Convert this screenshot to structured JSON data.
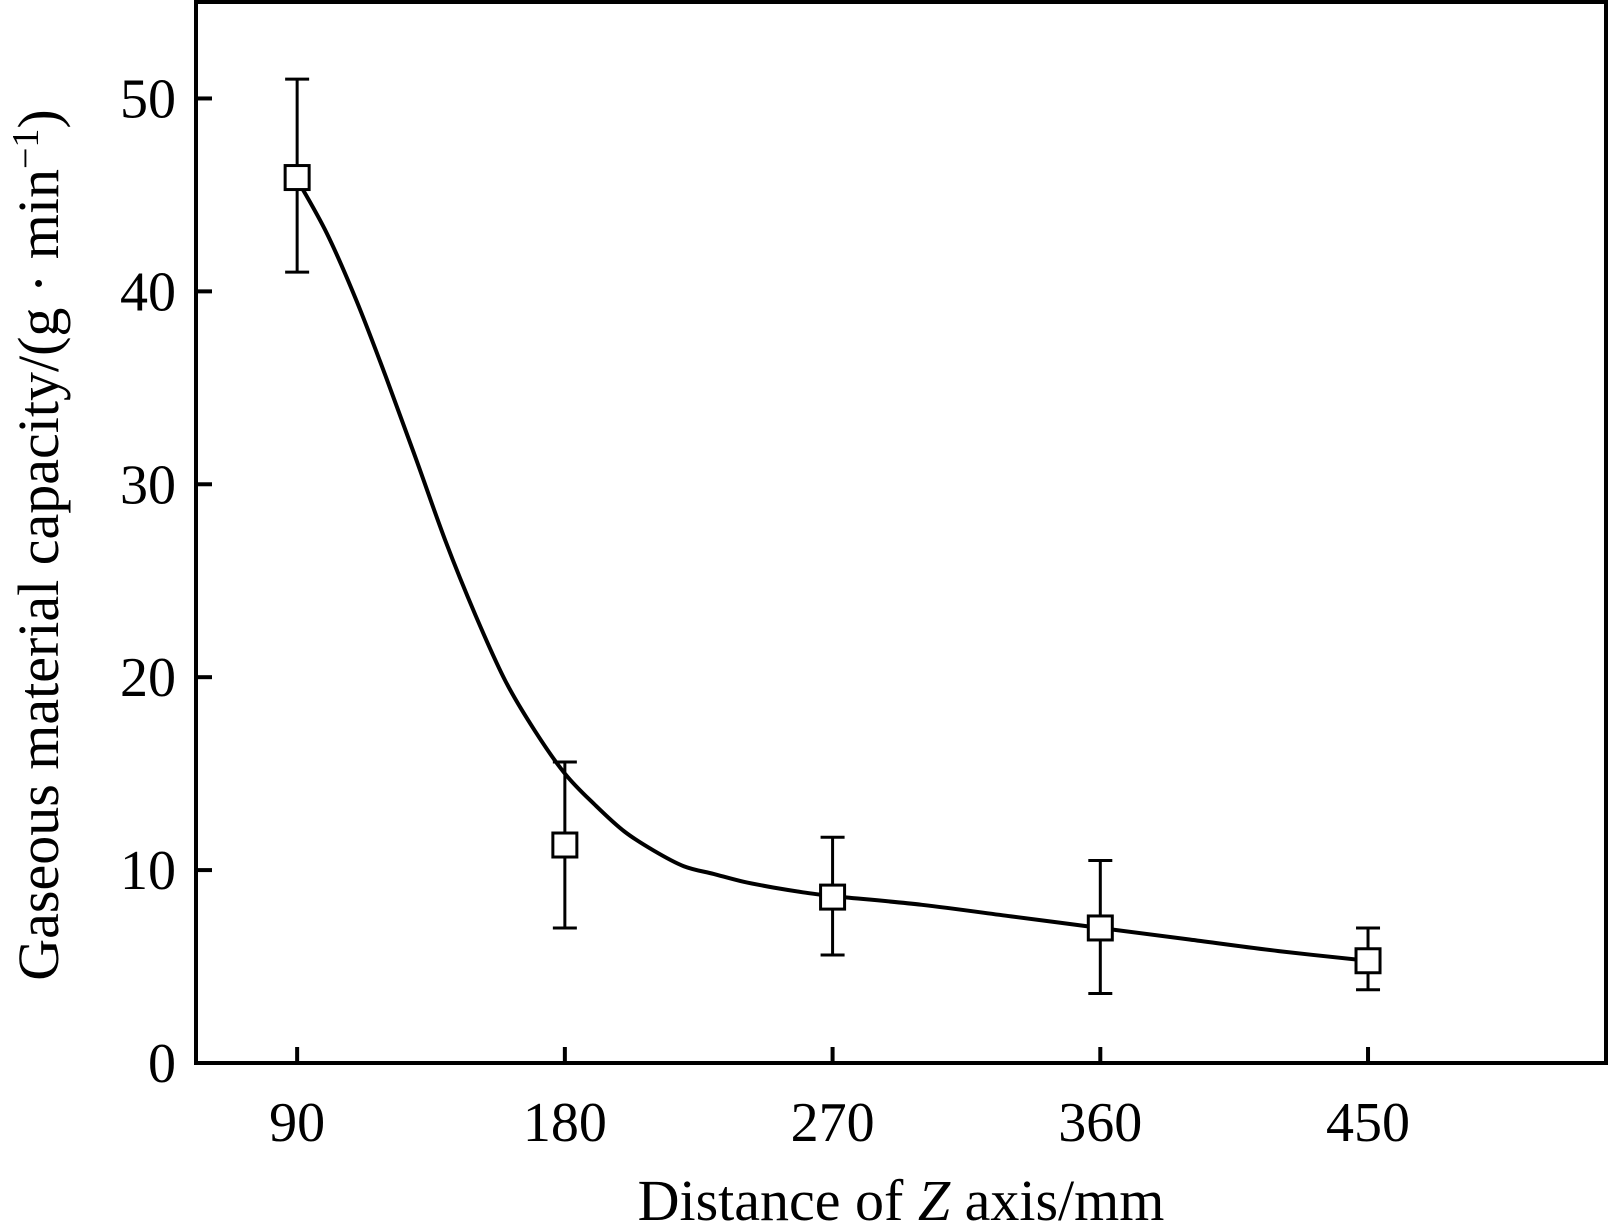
{
  "chart_data": {
    "type": "scatter",
    "title": "",
    "xlabel_parts": {
      "prefix": "Distance of ",
      "italic": "Z",
      "suffix": " axis/mm"
    },
    "ylabel_parts": {
      "main": "Gaseous material capacity/(g · min",
      "superscript": "−1",
      "close": ")"
    },
    "xlim": [
      56,
      530
    ],
    "ylim": [
      0,
      55
    ],
    "xticks": [
      90,
      180,
      270,
      360,
      450
    ],
    "yticks": [
      0,
      10,
      20,
      30,
      40,
      50
    ],
    "grid": false,
    "legend": "none",
    "series": [
      {
        "marker": "open-square",
        "x": [
          90,
          180,
          270,
          360,
          450
        ],
        "y": [
          45.9,
          11.3,
          8.6,
          7.0,
          5.3
        ],
        "error_low": [
          41.0,
          7.0,
          5.6,
          3.6,
          3.8
        ],
        "error_high": [
          51.0,
          15.6,
          11.7,
          10.5,
          7.0
        ]
      }
    ],
    "fit_curve": {
      "style": "solid",
      "x": [
        90,
        100,
        110,
        120,
        130,
        140,
        150,
        160,
        170,
        180,
        190,
        200,
        210,
        220,
        230,
        240,
        250,
        260,
        270,
        300,
        330,
        360,
        390,
        420,
        450
      ],
      "y": [
        45.8,
        43.0,
        39.5,
        35.5,
        31.3,
        27.0,
        23.2,
        19.8,
        17.2,
        15.0,
        13.4,
        12.0,
        11.0,
        10.2,
        9.8,
        9.4,
        9.1,
        8.85,
        8.65,
        8.2,
        7.6,
        7.0,
        6.4,
        5.8,
        5.3
      ]
    },
    "colors": {
      "line": "#000000",
      "marker_fill": "#ffffff"
    }
  }
}
